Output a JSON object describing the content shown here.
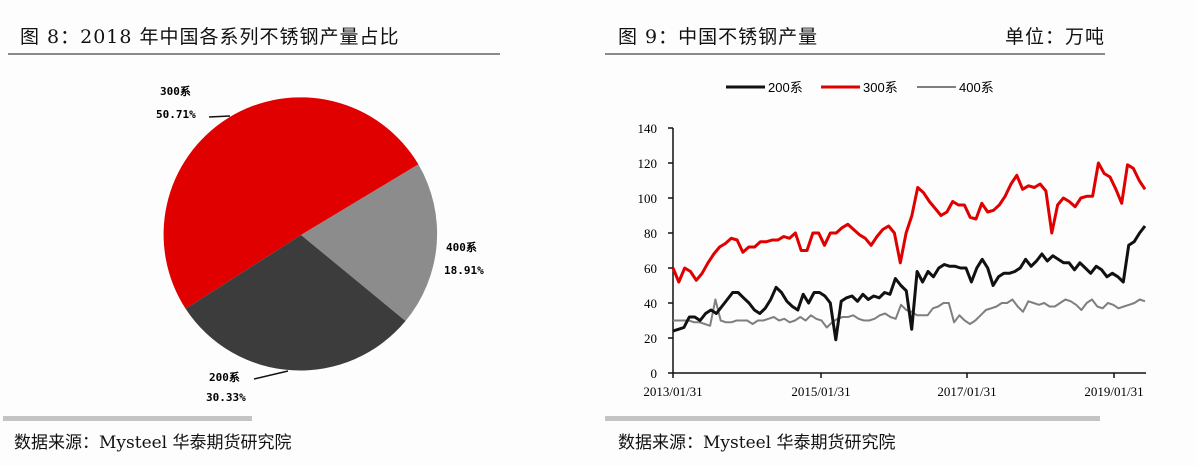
{
  "left_panel": {
    "title": "图 8：2018 年中国各系列不锈钢产量占比",
    "source": "数据来源：Mysteel 华泰期货研究院"
  },
  "right_panel": {
    "title": "图 9：中国不锈钢产量",
    "unit": "单位：万吨",
    "source": "数据来源：Mysteel  华泰期货研究院"
  },
  "colors": {
    "s200": "#111111",
    "s300": "#e00000",
    "s400": "#7f7f7f",
    "pie200": "#3c3c3c",
    "pie400": "#8c8c8c"
  },
  "chart_data": [
    {
      "type": "pie",
      "title": "2018年中国各系列不锈钢产量占比",
      "labels": [
        "300系",
        "400系",
        "200系"
      ],
      "values": [
        50.71,
        18.91,
        30.33
      ],
      "value_labels": [
        "50.71%",
        "18.91%",
        "30.33%"
      ],
      "colors": [
        "#e00000",
        "#8c8c8c",
        "#3c3c3c"
      ]
    },
    {
      "type": "line",
      "title": "中国不锈钢产量",
      "ylabel": "万吨",
      "ylim": [
        0,
        140
      ],
      "yticks": [
        0,
        20,
        40,
        60,
        80,
        100,
        120,
        140
      ],
      "xticks": [
        "2013/01/31",
        "2015/01/31",
        "2017/01/31",
        "2019/01/31"
      ],
      "legend": [
        "200系",
        "300系",
        "400系"
      ],
      "legend_position": "top",
      "x_range": [
        "2013-01",
        "2019-09"
      ],
      "series": [
        {
          "name": "200系",
          "color": "#111111",
          "values": [
            24,
            25,
            26,
            32,
            32,
            30,
            34,
            36,
            34,
            38,
            42,
            46,
            46,
            43,
            40,
            36,
            34,
            37,
            42,
            49,
            46,
            41,
            38,
            36,
            45,
            40,
            46,
            46,
            44,
            40,
            19,
            41,
            43,
            44,
            41,
            45,
            42,
            44,
            43,
            46,
            45,
            54,
            50,
            47,
            25,
            58,
            52,
            58,
            55,
            60,
            62,
            61,
            61,
            60,
            60,
            52,
            60,
            65,
            60,
            50,
            55,
            57,
            57,
            58,
            60,
            65,
            61,
            64,
            68,
            64,
            67,
            65,
            63,
            63,
            59,
            63,
            60,
            57,
            61,
            59,
            55,
            57,
            55,
            52,
            73,
            75,
            80,
            84
          ]
        },
        {
          "name": "300系",
          "color": "#e00000",
          "values": [
            60,
            52,
            60,
            58,
            53,
            57,
            63,
            68,
            72,
            74,
            77,
            76,
            69,
            72,
            72,
            75,
            75,
            76,
            76,
            78,
            77,
            80,
            70,
            70,
            80,
            80,
            73,
            80,
            80,
            83,
            85,
            82,
            79,
            77,
            73,
            78,
            82,
            84,
            80,
            63,
            80,
            90,
            106,
            103,
            98,
            94,
            90,
            92,
            98,
            96,
            96,
            89,
            88,
            97,
            92,
            93,
            96,
            101,
            108,
            113,
            105,
            107,
            106,
            108,
            104,
            80,
            96,
            100,
            98,
            95,
            100,
            101,
            101,
            120,
            114,
            112,
            105,
            97,
            119,
            117,
            110,
            105
          ]
        },
        {
          "name": "400系",
          "color": "#7f7f7f",
          "values": [
            30,
            30,
            30,
            30,
            29,
            29,
            28,
            27,
            42,
            30,
            29,
            29,
            30,
            30,
            30,
            28,
            30,
            30,
            31,
            32,
            30,
            31,
            29,
            30,
            32,
            30,
            33,
            31,
            30,
            26,
            29,
            31,
            32,
            32,
            33,
            31,
            30,
            30,
            31,
            33,
            34,
            32,
            31,
            39,
            36,
            35,
            33,
            33,
            33,
            37,
            38,
            40,
            40,
            29,
            33,
            30,
            28,
            30,
            33,
            36,
            37,
            38,
            40,
            40,
            42,
            38,
            35,
            41,
            40,
            39,
            40,
            38,
            38,
            40,
            42,
            41,
            39,
            36,
            40,
            42,
            38,
            37,
            40,
            39,
            37,
            38,
            39,
            40,
            42,
            41
          ]
        }
      ]
    }
  ]
}
